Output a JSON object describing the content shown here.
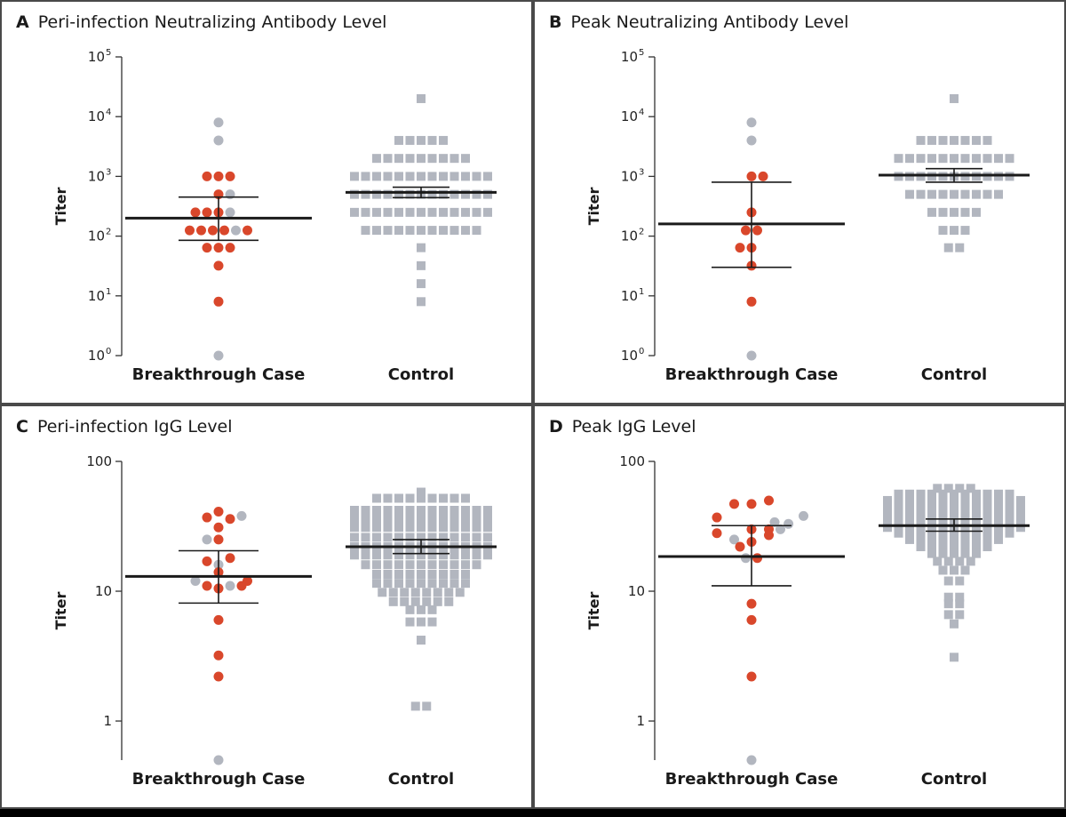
{
  "colors": {
    "breakthrough_red": "#d9472b",
    "gray_marker": "#b2b6bf",
    "summary_line": "#1a1a1a",
    "axis": "#333333",
    "panel_border": "#4a4a4a"
  },
  "chart_data": [
    {
      "panel": "A",
      "title": "Peri-infection Neutralizing Antibody Level",
      "type": "scatter",
      "scale": "log",
      "ylabel": "Titer",
      "categories": [
        "Breakthrough Case",
        "Control"
      ],
      "yticks": [
        {
          "base": "10",
          "exp": "0",
          "value": 1
        },
        {
          "base": "10",
          "exp": "1",
          "value": 10
        },
        {
          "base": "10",
          "exp": "2",
          "value": 100
        },
        {
          "base": "10",
          "exp": "3",
          "value": 1000
        },
        {
          "base": "10",
          "exp": "4",
          "value": 10000
        },
        {
          "base": "10",
          "exp": "5",
          "value": 100000
        }
      ],
      "ylim": [
        1,
        100000
      ],
      "case_points": [
        {
          "y": 8000,
          "c": "gray",
          "j": 0
        },
        {
          "y": 4000,
          "c": "gray",
          "j": 0
        },
        {
          "y": 1000,
          "c": "red",
          "j": -1
        },
        {
          "y": 1000,
          "c": "red",
          "j": 0
        },
        {
          "y": 1000,
          "c": "red",
          "j": 1
        },
        {
          "y": 500,
          "c": "red",
          "j": 0
        },
        {
          "y": 500,
          "c": "gray",
          "j": 1
        },
        {
          "y": 250,
          "c": "red",
          "j": -2
        },
        {
          "y": 250,
          "c": "red",
          "j": -1
        },
        {
          "y": 250,
          "c": "red",
          "j": 0
        },
        {
          "y": 250,
          "c": "gray",
          "j": 1
        },
        {
          "y": 125,
          "c": "red",
          "j": -2.5
        },
        {
          "y": 125,
          "c": "red",
          "j": -1.5
        },
        {
          "y": 125,
          "c": "red",
          "j": -0.5
        },
        {
          "y": 125,
          "c": "red",
          "j": 0.5
        },
        {
          "y": 125,
          "c": "gray",
          "j": 1.5
        },
        {
          "y": 125,
          "c": "red",
          "j": 2.5
        },
        {
          "y": 64,
          "c": "red",
          "j": -1
        },
        {
          "y": 64,
          "c": "red",
          "j": 0
        },
        {
          "y": 64,
          "c": "red",
          "j": 1
        },
        {
          "y": 32,
          "c": "red",
          "j": 0
        },
        {
          "y": 8,
          "c": "red",
          "j": 0
        },
        {
          "y": 1,
          "c": "gray",
          "j": 0
        }
      ],
      "case_summary": {
        "center": 200,
        "upper": 450,
        "lower": 85
      },
      "control_points": [
        {
          "y": 20000,
          "n": 1
        },
        {
          "y": 4000,
          "n": 5
        },
        {
          "y": 2000,
          "n": 9
        },
        {
          "y": 1000,
          "n": 13
        },
        {
          "y": 500,
          "n": 13
        },
        {
          "y": 250,
          "n": 13
        },
        {
          "y": 125,
          "n": 11
        },
        {
          "y": 64,
          "n": 1
        },
        {
          "y": 32,
          "n": 1
        },
        {
          "y": 16,
          "n": 1
        },
        {
          "y": 8,
          "n": 1
        }
      ],
      "control_summary": {
        "center": 540,
        "upper": 660,
        "lower": 440
      }
    },
    {
      "panel": "B",
      "title": "Peak Neutralizing Antibody Level",
      "type": "scatter",
      "scale": "log",
      "ylabel": "Titer",
      "categories": [
        "Breakthrough Case",
        "Control"
      ],
      "yticks": [
        {
          "base": "10",
          "exp": "0",
          "value": 1
        },
        {
          "base": "10",
          "exp": "1",
          "value": 10
        },
        {
          "base": "10",
          "exp": "2",
          "value": 100
        },
        {
          "base": "10",
          "exp": "3",
          "value": 1000
        },
        {
          "base": "10",
          "exp": "4",
          "value": 10000
        },
        {
          "base": "10",
          "exp": "5",
          "value": 100000
        }
      ],
      "ylim": [
        1,
        100000
      ],
      "case_points": [
        {
          "y": 8000,
          "c": "gray",
          "j": 0
        },
        {
          "y": 4000,
          "c": "gray",
          "j": 0
        },
        {
          "y": 1000,
          "c": "red",
          "j": 0
        },
        {
          "y": 1000,
          "c": "red",
          "j": 1
        },
        {
          "y": 250,
          "c": "red",
          "j": 0
        },
        {
          "y": 125,
          "c": "red",
          "j": -0.5
        },
        {
          "y": 125,
          "c": "red",
          "j": 0.5
        },
        {
          "y": 64,
          "c": "red",
          "j": -1
        },
        {
          "y": 64,
          "c": "red",
          "j": 0
        },
        {
          "y": 32,
          "c": "red",
          "j": 0
        },
        {
          "y": 8,
          "c": "red",
          "j": 0
        },
        {
          "y": 1,
          "c": "gray",
          "j": 0
        }
      ],
      "case_summary": {
        "center": 160,
        "upper": 800,
        "lower": 30
      },
      "control_points": [
        {
          "y": 20000,
          "n": 1
        },
        {
          "y": 4000,
          "n": 7
        },
        {
          "y": 2000,
          "n": 11
        },
        {
          "y": 1000,
          "n": 11
        },
        {
          "y": 500,
          "n": 9
        },
        {
          "y": 250,
          "n": 5
        },
        {
          "y": 125,
          "n": 3
        },
        {
          "y": 64,
          "n": 2
        }
      ],
      "control_summary": {
        "center": 1050,
        "upper": 1350,
        "lower": 800
      }
    },
    {
      "panel": "C",
      "title": "Peri-infection IgG Level",
      "type": "scatter",
      "scale": "log",
      "ylabel": "Titer",
      "categories": [
        "Breakthrough Case",
        "Control"
      ],
      "yticks": [
        {
          "base": "1",
          "exp": "",
          "value": 1
        },
        {
          "base": "10",
          "exp": "",
          "value": 10
        },
        {
          "base": "100",
          "exp": "",
          "value": 100
        }
      ],
      "ylim": [
        0.5,
        100
      ],
      "case_points": [
        {
          "y": 41,
          "c": "red",
          "j": 0
        },
        {
          "y": 37,
          "c": "red",
          "j": -1
        },
        {
          "y": 36,
          "c": "red",
          "j": 1
        },
        {
          "y": 38,
          "c": "gray",
          "j": 2
        },
        {
          "y": 31,
          "c": "red",
          "j": 0
        },
        {
          "y": 25,
          "c": "gray",
          "j": -1
        },
        {
          "y": 25,
          "c": "red",
          "j": 0
        },
        {
          "y": 18,
          "c": "red",
          "j": 1
        },
        {
          "y": 17,
          "c": "red",
          "j": -1
        },
        {
          "y": 16,
          "c": "gray",
          "j": 0
        },
        {
          "y": 14,
          "c": "red",
          "j": 0
        },
        {
          "y": 12,
          "c": "red",
          "j": 2.5
        },
        {
          "y": 12,
          "c": "gray",
          "j": -2
        },
        {
          "y": 11,
          "c": "red",
          "j": -1
        },
        {
          "y": 10.5,
          "c": "red",
          "j": 0
        },
        {
          "y": 11,
          "c": "gray",
          "j": 1
        },
        {
          "y": 11,
          "c": "red",
          "j": 2
        },
        {
          "y": 6,
          "c": "red",
          "j": 0
        },
        {
          "y": 3.2,
          "c": "red",
          "j": 0
        },
        {
          "y": 2.2,
          "c": "red",
          "j": 0
        },
        {
          "y": 0.5,
          "c": "gray",
          "j": 0
        }
      ],
      "case_summary": {
        "center": 13,
        "upper": 20.5,
        "lower": 8.1
      },
      "control_points": [
        {
          "y": 58,
          "n": 1
        },
        {
          "y": 52,
          "n": 9
        },
        {
          "y": 42,
          "n": 13
        },
        {
          "y": 36,
          "n": 13
        },
        {
          "y": 31,
          "n": 13
        },
        {
          "y": 26,
          "n": 13
        },
        {
          "y": 22,
          "n": 13
        },
        {
          "y": 19,
          "n": 13
        },
        {
          "y": 16,
          "n": 11
        },
        {
          "y": 13.5,
          "n": 9
        },
        {
          "y": 11.5,
          "n": 9
        },
        {
          "y": 9.8,
          "n": 8
        },
        {
          "y": 8.3,
          "n": 6
        },
        {
          "y": 7.2,
          "n": 3
        },
        {
          "y": 5.8,
          "n": 3
        },
        {
          "y": 4.2,
          "n": 1
        },
        {
          "y": 1.3,
          "n": 2
        }
      ],
      "control_summary": {
        "center": 22,
        "upper": 25,
        "lower": 19.5
      }
    },
    {
      "panel": "D",
      "title": "Peak IgG Level",
      "type": "scatter",
      "scale": "log",
      "ylabel": "Titer",
      "categories": [
        "Breakthrough Case",
        "Control"
      ],
      "yticks": [
        {
          "base": "1",
          "exp": "",
          "value": 1
        },
        {
          "base": "10",
          "exp": "",
          "value": 10
        },
        {
          "base": "100",
          "exp": "",
          "value": 100
        }
      ],
      "ylim": [
        0.5,
        100
      ],
      "case_points": [
        {
          "y": 50,
          "c": "red",
          "j": 1.5
        },
        {
          "y": 47,
          "c": "red",
          "j": -1.5
        },
        {
          "y": 47,
          "c": "red",
          "j": 0
        },
        {
          "y": 38,
          "c": "gray",
          "j": 4.5
        },
        {
          "y": 37,
          "c": "red",
          "j": -3
        },
        {
          "y": 34,
          "c": "gray",
          "j": 2
        },
        {
          "y": 33,
          "c": "gray",
          "j": 3.2
        },
        {
          "y": 30,
          "c": "red",
          "j": 0
        },
        {
          "y": 30,
          "c": "red",
          "j": 1.5
        },
        {
          "y": 30,
          "c": "gray",
          "j": 2.5
        },
        {
          "y": 28,
          "c": "red",
          "j": -3
        },
        {
          "y": 27,
          "c": "red",
          "j": 1.5
        },
        {
          "y": 25,
          "c": "gray",
          "j": -1.5
        },
        {
          "y": 24,
          "c": "red",
          "j": 0
        },
        {
          "y": 22,
          "c": "red",
          "j": -1
        },
        {
          "y": 18,
          "c": "red",
          "j": 0.5
        },
        {
          "y": 18,
          "c": "gray",
          "j": -0.5
        },
        {
          "y": 8,
          "c": "red",
          "j": 0
        },
        {
          "y": 6,
          "c": "red",
          "j": 0
        },
        {
          "y": 2.2,
          "c": "red",
          "j": 0
        },
        {
          "y": 0.5,
          "c": "gray",
          "j": 0
        }
      ],
      "case_summary": {
        "center": 18.5,
        "upper": 32,
        "lower": 11
      },
      "control_points": [
        {
          "y": 62,
          "n": 4
        },
        {
          "y": 56,
          "n": 11
        },
        {
          "y": 50,
          "n": 13
        },
        {
          "y": 44,
          "n": 13
        },
        {
          "y": 39,
          "n": 13
        },
        {
          "y": 35,
          "n": 13
        },
        {
          "y": 31,
          "n": 13
        },
        {
          "y": 28,
          "n": 11
        },
        {
          "y": 25,
          "n": 9
        },
        {
          "y": 22,
          "n": 7
        },
        {
          "y": 19.5,
          "n": 5
        },
        {
          "y": 17,
          "n": 4
        },
        {
          "y": 14.5,
          "n": 3
        },
        {
          "y": 12,
          "n": 2
        },
        {
          "y": 9,
          "n": 2
        },
        {
          "y": 8,
          "n": 2
        },
        {
          "y": 6.6,
          "n": 2
        },
        {
          "y": 5.6,
          "n": 1
        },
        {
          "y": 3.1,
          "n": 1
        }
      ],
      "control_summary": {
        "center": 32,
        "upper": 36,
        "lower": 29
      }
    }
  ]
}
